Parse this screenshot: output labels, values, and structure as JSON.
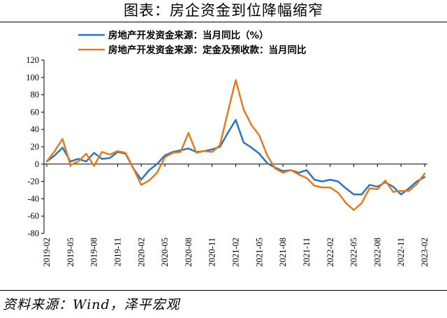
{
  "figure_title": "图表：房企资金到位降幅缩窄",
  "source_note": "资料来源：Wind，泽平宏观",
  "chart_data": {
    "type": "line",
    "ylim": [
      -80,
      120
    ],
    "yticks": [
      "120",
      "100",
      "80",
      "60",
      "40",
      "20",
      "0",
      "-20",
      "-40",
      "-60",
      "-80"
    ],
    "xticks": [
      "2019-02",
      "2019-05",
      "2019-08",
      "2019-11",
      "2020-02",
      "2020-05",
      "2020-08",
      "2020-11",
      "2021-02",
      "2021-05",
      "2021-08",
      "2021-11",
      "2022-02",
      "2022-05",
      "2022-08",
      "2022-11",
      "2023-02"
    ],
    "x": [
      "2019-02",
      "2019-03",
      "2019-04",
      "2019-05",
      "2019-06",
      "2019-07",
      "2019-08",
      "2019-09",
      "2019-10",
      "2019-11",
      "2019-12",
      "2020-01",
      "2020-02",
      "2020-03",
      "2020-04",
      "2020-05",
      "2020-06",
      "2020-07",
      "2020-08",
      "2020-09",
      "2020-10",
      "2020-11",
      "2020-12",
      "2021-01",
      "2021-02",
      "2021-03",
      "2021-04",
      "2021-05",
      "2021-06",
      "2021-07",
      "2021-08",
      "2021-09",
      "2021-10",
      "2021-11",
      "2021-12",
      "2022-01",
      "2022-02",
      "2022-03",
      "2022-04",
      "2022-05",
      "2022-06",
      "2022-07",
      "2022-08",
      "2022-09",
      "2022-10",
      "2022-11",
      "2022-12",
      "2023-01",
      "2023-02"
    ],
    "legend_position": "top-left",
    "series": [
      {
        "name": "房地产开发资金来源：当月同比（%）",
        "color": "#2e75b6",
        "values": [
          3,
          10,
          19,
          3,
          6,
          3,
          13,
          6,
          7,
          14,
          12,
          -5,
          -18,
          -7,
          0,
          10,
          14,
          16,
          18,
          14,
          15,
          17,
          20,
          36,
          51,
          25,
          19,
          12,
          1,
          -4,
          -8,
          -7,
          -10,
          -7,
          -18,
          -20,
          -18,
          -20,
          -28,
          -35,
          -35,
          -24,
          -26,
          -21,
          -26,
          -35,
          -28,
          -20,
          -15
        ]
      },
      {
        "name": "房地产开发资金来源：定金及预收款：当月同比",
        "color": "#e07b22",
        "values": [
          3,
          15,
          29,
          -1,
          3,
          12,
          -2,
          14,
          11,
          15,
          13,
          -5,
          -24,
          -19,
          -10,
          8,
          13,
          14,
          36,
          13,
          15,
          14,
          22,
          60,
          97,
          63,
          45,
          33,
          10,
          -5,
          -10,
          -7,
          -12,
          -16,
          -25,
          -27,
          -27,
          -33,
          -45,
          -53,
          -45,
          -28,
          -29,
          -19,
          -32,
          -31,
          -31,
          -23,
          -11
        ]
      }
    ]
  }
}
